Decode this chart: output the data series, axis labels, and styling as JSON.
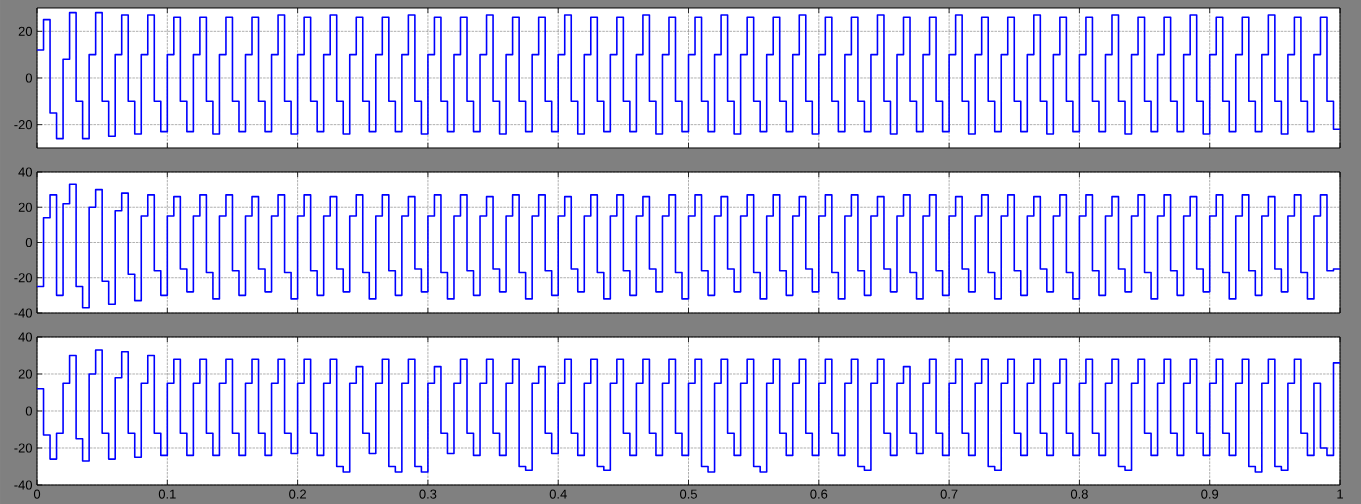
{
  "chart_data": [
    {
      "type": "step",
      "color": "#0000ff",
      "line_style": "solid",
      "grid": true,
      "tick_labels": "y",
      "xlim": [
        0,
        1
      ],
      "ylim": [
        -30,
        30
      ],
      "xticks": [
        0,
        0.1,
        0.2,
        0.3,
        0.4,
        0.5,
        0.6,
        0.7,
        0.8,
        0.9,
        1
      ],
      "yticks": [
        -20,
        0,
        20
      ],
      "x": [
        0,
        0.005,
        0.01,
        0.015,
        0.02,
        0.025,
        0.03,
        0.035,
        0.04,
        0.045,
        0.05,
        0.055,
        0.06,
        0.065,
        0.07,
        0.075,
        0.08,
        0.085,
        0.09,
        0.095,
        0.1,
        0.105,
        0.11,
        0.115,
        0.12,
        0.125,
        0.13,
        0.135,
        0.14,
        0.145,
        0.15,
        0.155,
        0.16,
        0.165,
        0.17,
        0.175,
        0.18,
        0.185,
        0.19,
        0.195,
        0.2,
        0.205,
        0.21,
        0.215,
        0.22,
        0.225,
        0.23,
        0.235,
        0.24,
        0.245,
        0.25,
        0.255,
        0.26,
        0.265,
        0.27,
        0.275,
        0.28,
        0.285,
        0.29,
        0.295,
        0.3,
        0.305,
        0.31,
        0.315,
        0.32,
        0.325,
        0.33,
        0.335,
        0.34,
        0.345,
        0.35,
        0.355,
        0.36,
        0.365,
        0.37,
        0.375,
        0.38,
        0.385,
        0.39,
        0.395,
        0.4,
        0.405,
        0.41,
        0.415,
        0.42,
        0.425,
        0.43,
        0.435,
        0.44,
        0.445,
        0.45,
        0.455,
        0.46,
        0.465,
        0.47,
        0.475,
        0.48,
        0.485,
        0.49,
        0.495,
        0.5,
        0.505,
        0.51,
        0.515,
        0.52,
        0.525,
        0.53,
        0.535,
        0.54,
        0.545,
        0.55,
        0.555,
        0.56,
        0.565,
        0.57,
        0.575,
        0.58,
        0.585,
        0.59,
        0.595,
        0.6,
        0.605,
        0.61,
        0.615,
        0.62,
        0.625,
        0.63,
        0.635,
        0.64,
        0.645,
        0.65,
        0.655,
        0.66,
        0.665,
        0.67,
        0.675,
        0.68,
        0.685,
        0.69,
        0.695,
        0.7,
        0.705,
        0.71,
        0.715,
        0.72,
        0.725,
        0.73,
        0.735,
        0.74,
        0.745,
        0.75,
        0.755,
        0.76,
        0.765,
        0.77,
        0.775,
        0.78,
        0.785,
        0.79,
        0.795,
        0.8,
        0.805,
        0.81,
        0.815,
        0.82,
        0.825,
        0.83,
        0.835,
        0.84,
        0.845,
        0.85,
        0.855,
        0.86,
        0.865,
        0.87,
        0.875,
        0.88,
        0.885,
        0.89,
        0.895,
        0.9,
        0.905,
        0.91,
        0.915,
        0.92,
        0.925,
        0.93,
        0.935,
        0.94,
        0.945,
        0.95,
        0.955,
        0.96,
        0.965,
        0.97,
        0.975,
        0.98,
        0.985,
        0.99,
        0.995,
        1
      ],
      "values": [
        12,
        25,
        -15,
        -26,
        8,
        28,
        -10,
        -26,
        10,
        28,
        -10,
        -25,
        10,
        27,
        -10,
        -24,
        10,
        27,
        -10,
        -23,
        10,
        26,
        -10,
        -23,
        10,
        26,
        -10,
        -24,
        10,
        26,
        -10,
        -23,
        10,
        26,
        -10,
        -23,
        10,
        27,
        -10,
        -24,
        10,
        26,
        -10,
        -23,
        10,
        27,
        -10,
        -24,
        10,
        26,
        -10,
        -23,
        10,
        26,
        -10,
        -23,
        10,
        27,
        -10,
        -24,
        10,
        26,
        -10,
        -23,
        10,
        26,
        -10,
        -23,
        10,
        27,
        -10,
        -24,
        10,
        26,
        -10,
        -23,
        10,
        26,
        -10,
        -23,
        10,
        27,
        -10,
        -24,
        10,
        26,
        -10,
        -23,
        10,
        26,
        -10,
        -23,
        10,
        27,
        -10,
        -24,
        10,
        26,
        -10,
        -23,
        10,
        26,
        -10,
        -23,
        10,
        27,
        -10,
        -24,
        10,
        26,
        -10,
        -23,
        10,
        26,
        -10,
        -23,
        10,
        27,
        -10,
        -24,
        10,
        26,
        -10,
        -23,
        10,
        26,
        -10,
        -23,
        10,
        27,
        -10,
        -24,
        10,
        26,
        -10,
        -23,
        10,
        26,
        -10,
        -23,
        10,
        27,
        -10,
        -24,
        10,
        26,
        -10,
        -23,
        10,
        26,
        -10,
        -23,
        10,
        27,
        -10,
        -24,
        10,
        26,
        -10,
        -23,
        10,
        26,
        -10,
        -23,
        10,
        27,
        -10,
        -24,
        10,
        26,
        -10,
        -23,
        10,
        26,
        -10,
        -23,
        10,
        27,
        -10,
        -24,
        10,
        26,
        -10,
        -23,
        10,
        26,
        -10,
        -23,
        10,
        27,
        -10,
        -24,
        10,
        26,
        -10,
        -23,
        10,
        26,
        -10,
        -22,
        -22
      ]
    },
    {
      "type": "step",
      "color": "#0000ff",
      "line_style": "solid",
      "grid": true,
      "tick_labels": "y",
      "xlim": [
        0,
        1
      ],
      "ylim": [
        -40,
        40
      ],
      "xticks": [
        0,
        0.1,
        0.2,
        0.3,
        0.4,
        0.5,
        0.6,
        0.7,
        0.8,
        0.9,
        1
      ],
      "yticks": [
        -40,
        -20,
        0,
        20,
        40
      ],
      "x": [
        0,
        0.005,
        0.01,
        0.015,
        0.02,
        0.025,
        0.03,
        0.035,
        0.04,
        0.045,
        0.05,
        0.055,
        0.06,
        0.065,
        0.07,
        0.075,
        0.08,
        0.085,
        0.09,
        0.095,
        0.1,
        0.105,
        0.11,
        0.115,
        0.12,
        0.125,
        0.13,
        0.135,
        0.14,
        0.145,
        0.15,
        0.155,
        0.16,
        0.165,
        0.17,
        0.175,
        0.18,
        0.185,
        0.19,
        0.195,
        0.2,
        0.205,
        0.21,
        0.215,
        0.22,
        0.225,
        0.23,
        0.235,
        0.24,
        0.245,
        0.25,
        0.255,
        0.26,
        0.265,
        0.27,
        0.275,
        0.28,
        0.285,
        0.29,
        0.295,
        0.3,
        0.305,
        0.31,
        0.315,
        0.32,
        0.325,
        0.33,
        0.335,
        0.34,
        0.345,
        0.35,
        0.355,
        0.36,
        0.365,
        0.37,
        0.375,
        0.38,
        0.385,
        0.39,
        0.395,
        0.4,
        0.405,
        0.41,
        0.415,
        0.42,
        0.425,
        0.43,
        0.435,
        0.44,
        0.445,
        0.45,
        0.455,
        0.46,
        0.465,
        0.47,
        0.475,
        0.48,
        0.485,
        0.49,
        0.495,
        0.5,
        0.505,
        0.51,
        0.515,
        0.52,
        0.525,
        0.53,
        0.535,
        0.54,
        0.545,
        0.55,
        0.555,
        0.56,
        0.565,
        0.57,
        0.575,
        0.58,
        0.585,
        0.59,
        0.595,
        0.6,
        0.605,
        0.61,
        0.615,
        0.62,
        0.625,
        0.63,
        0.635,
        0.64,
        0.645,
        0.65,
        0.655,
        0.66,
        0.665,
        0.67,
        0.675,
        0.68,
        0.685,
        0.69,
        0.695,
        0.7,
        0.705,
        0.71,
        0.715,
        0.72,
        0.725,
        0.73,
        0.735,
        0.74,
        0.745,
        0.75,
        0.755,
        0.76,
        0.765,
        0.77,
        0.775,
        0.78,
        0.785,
        0.79,
        0.795,
        0.8,
        0.805,
        0.81,
        0.815,
        0.82,
        0.825,
        0.83,
        0.835,
        0.84,
        0.845,
        0.85,
        0.855,
        0.86,
        0.865,
        0.87,
        0.875,
        0.88,
        0.885,
        0.89,
        0.895,
        0.9,
        0.905,
        0.91,
        0.915,
        0.92,
        0.925,
        0.93,
        0.935,
        0.94,
        0.945,
        0.95,
        0.955,
        0.96,
        0.965,
        0.97,
        0.975,
        0.98,
        0.985,
        0.99,
        0.995,
        1
      ],
      "values": [
        -25,
        14,
        27,
        -30,
        22,
        33,
        -25,
        -37,
        20,
        30,
        -22,
        -35,
        18,
        28,
        -18,
        -33,
        15,
        27,
        -16,
        -30,
        15,
        26,
        -15,
        -28,
        15,
        27,
        -17,
        -32,
        15,
        27,
        -16,
        -30,
        15,
        26,
        -15,
        -28,
        15,
        27,
        -17,
        -32,
        15,
        27,
        -16,
        -30,
        15,
        26,
        -15,
        -28,
        15,
        27,
        -17,
        -32,
        15,
        27,
        -16,
        -30,
        15,
        26,
        -15,
        -28,
        15,
        27,
        -17,
        -32,
        15,
        27,
        -16,
        -30,
        15,
        26,
        -15,
        -28,
        15,
        27,
        -17,
        -32,
        15,
        27,
        -16,
        -30,
        15,
        26,
        -15,
        -28,
        15,
        27,
        -17,
        -32,
        15,
        27,
        -16,
        -30,
        15,
        26,
        -15,
        -28,
        15,
        27,
        -17,
        -32,
        15,
        27,
        -16,
        -30,
        15,
        26,
        -15,
        -28,
        15,
        27,
        -17,
        -32,
        15,
        27,
        -16,
        -30,
        15,
        26,
        -15,
        -28,
        15,
        27,
        -17,
        -32,
        15,
        27,
        -16,
        -30,
        15,
        26,
        -15,
        -28,
        15,
        27,
        -17,
        -32,
        15,
        27,
        -16,
        -30,
        15,
        26,
        -15,
        -28,
        15,
        27,
        -17,
        -32,
        15,
        27,
        -16,
        -30,
        15,
        26,
        -15,
        -28,
        15,
        27,
        -17,
        -32,
        15,
        27,
        -16,
        -30,
        15,
        26,
        -15,
        -28,
        15,
        27,
        -17,
        -32,
        15,
        27,
        -16,
        -30,
        15,
        26,
        -15,
        -28,
        15,
        27,
        -17,
        -32,
        15,
        27,
        -16,
        -30,
        15,
        26,
        -15,
        -28,
        15,
        27,
        -17,
        -32,
        15,
        27,
        -16,
        -15,
        -15
      ]
    },
    {
      "type": "step",
      "color": "#0000ff",
      "line_style": "solid",
      "grid": true,
      "xlim": [
        0,
        1
      ],
      "ylim": [
        -40,
        40
      ],
      "xticks": [
        0,
        0.1,
        0.2,
        0.3,
        0.4,
        0.5,
        0.6,
        0.7,
        0.8,
        0.9,
        1
      ],
      "yticks": [
        -40,
        -20,
        0,
        20,
        40
      ],
      "x": [
        0,
        0.005,
        0.01,
        0.015,
        0.02,
        0.025,
        0.03,
        0.035,
        0.04,
        0.045,
        0.05,
        0.055,
        0.06,
        0.065,
        0.07,
        0.075,
        0.08,
        0.085,
        0.09,
        0.095,
        0.1,
        0.105,
        0.11,
        0.115,
        0.12,
        0.125,
        0.13,
        0.135,
        0.14,
        0.145,
        0.15,
        0.155,
        0.16,
        0.165,
        0.17,
        0.175,
        0.18,
        0.185,
        0.19,
        0.195,
        0.2,
        0.205,
        0.21,
        0.215,
        0.22,
        0.225,
        0.23,
        0.235,
        0.24,
        0.245,
        0.25,
        0.255,
        0.26,
        0.265,
        0.27,
        0.275,
        0.28,
        0.285,
        0.29,
        0.295,
        0.3,
        0.305,
        0.31,
        0.315,
        0.32,
        0.325,
        0.33,
        0.335,
        0.34,
        0.345,
        0.35,
        0.355,
        0.36,
        0.365,
        0.37,
        0.375,
        0.38,
        0.385,
        0.39,
        0.395,
        0.4,
        0.405,
        0.41,
        0.415,
        0.42,
        0.425,
        0.43,
        0.435,
        0.44,
        0.445,
        0.45,
        0.455,
        0.46,
        0.465,
        0.47,
        0.475,
        0.48,
        0.485,
        0.49,
        0.495,
        0.5,
        0.505,
        0.51,
        0.515,
        0.52,
        0.525,
        0.53,
        0.535,
        0.54,
        0.545,
        0.55,
        0.555,
        0.56,
        0.565,
        0.57,
        0.575,
        0.58,
        0.585,
        0.59,
        0.595,
        0.6,
        0.605,
        0.61,
        0.615,
        0.62,
        0.625,
        0.63,
        0.635,
        0.64,
        0.645,
        0.65,
        0.655,
        0.66,
        0.665,
        0.67,
        0.675,
        0.68,
        0.685,
        0.69,
        0.695,
        0.7,
        0.705,
        0.71,
        0.715,
        0.72,
        0.725,
        0.73,
        0.735,
        0.74,
        0.745,
        0.75,
        0.755,
        0.76,
        0.765,
        0.77,
        0.775,
        0.78,
        0.785,
        0.79,
        0.795,
        0.8,
        0.805,
        0.81,
        0.815,
        0.82,
        0.825,
        0.83,
        0.835,
        0.84,
        0.845,
        0.85,
        0.855,
        0.86,
        0.865,
        0.87,
        0.875,
        0.88,
        0.885,
        0.89,
        0.895,
        0.9,
        0.905,
        0.91,
        0.915,
        0.92,
        0.925,
        0.93,
        0.935,
        0.94,
        0.945,
        0.95,
        0.955,
        0.96,
        0.965,
        0.97,
        0.975,
        0.98,
        0.985,
        0.99,
        0.995,
        1
      ],
      "values": [
        12,
        -13,
        -26,
        -12,
        15,
        30,
        -15,
        -27,
        20,
        33,
        -12,
        -26,
        18,
        32,
        -12,
        -25,
        15,
        30,
        -12,
        -24,
        15,
        28,
        -12,
        -24,
        15,
        28,
        -12,
        -24,
        15,
        28,
        -12,
        -24,
        15,
        28,
        -12,
        -24,
        15,
        28,
        -12,
        -23,
        15,
        28,
        -12,
        -24,
        15,
        28,
        -30,
        -33,
        15,
        24,
        -12,
        -23,
        15,
        28,
        -30,
        -33,
        15,
        28,
        -30,
        -33,
        15,
        24,
        -12,
        -23,
        15,
        28,
        -12,
        -24,
        15,
        28,
        -12,
        -24,
        15,
        28,
        -30,
        -32,
        15,
        24,
        -12,
        -23,
        15,
        28,
        -12,
        -24,
        15,
        28,
        -30,
        -32,
        15,
        28,
        -12,
        -24,
        15,
        28,
        -12,
        -24,
        15,
        28,
        -12,
        -24,
        15,
        28,
        -30,
        -33,
        15,
        28,
        -12,
        -24,
        15,
        28,
        -30,
        -33,
        15,
        28,
        -12,
        -24,
        15,
        28,
        -12,
        -24,
        15,
        28,
        -12,
        -24,
        15,
        28,
        -30,
        -32,
        15,
        28,
        -12,
        -24,
        15,
        24,
        -12,
        -23,
        15,
        28,
        -12,
        -24,
        15,
        28,
        -12,
        -24,
        15,
        28,
        -30,
        -32,
        15,
        28,
        -12,
        -24,
        15,
        28,
        -12,
        -24,
        15,
        28,
        -12,
        -24,
        15,
        28,
        -12,
        -24,
        15,
        28,
        -30,
        -32,
        15,
        28,
        -12,
        -24,
        15,
        28,
        -12,
        -24,
        15,
        28,
        -12,
        -24,
        15,
        28,
        -12,
        -24,
        15,
        28,
        -30,
        -33,
        15,
        28,
        -30,
        -32,
        15,
        28,
        -12,
        -24,
        15,
        -20,
        -24,
        26,
        26
      ]
    }
  ]
}
